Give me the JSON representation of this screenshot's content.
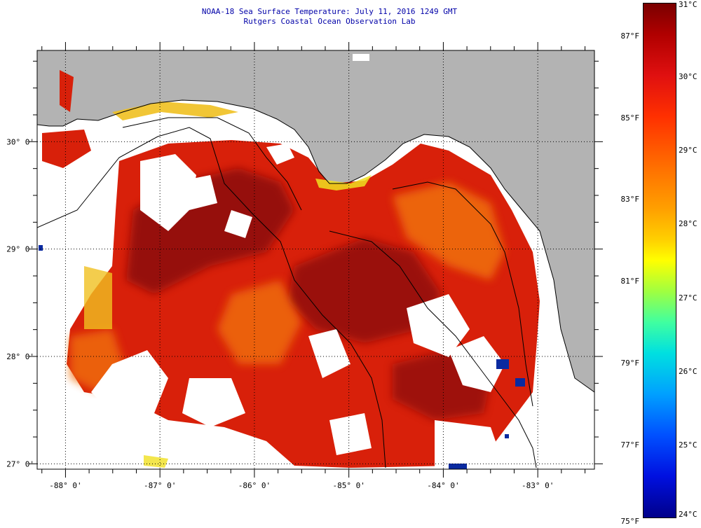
{
  "header": {
    "title": "NOAA-18 Sea Surface Temperature:  July 11, 2016 1249 GMT",
    "subtitle": "Rutgers Coastal Ocean Observation Lab"
  },
  "map": {
    "lon_range": [
      -88.3,
      -82.4
    ],
    "lat_range": [
      26.95,
      30.85
    ],
    "lon_ticks": [
      {
        "value": -88,
        "label": "-88° 0'"
      },
      {
        "value": -87,
        "label": "-87° 0'"
      },
      {
        "value": -86,
        "label": "-86° 0'"
      },
      {
        "value": -85,
        "label": "-85° 0'"
      },
      {
        "value": -84,
        "label": "-84° 0'"
      },
      {
        "value": -83,
        "label": "-83° 0'"
      }
    ],
    "lat_ticks": [
      {
        "value": 30,
        "label": "30° 0'"
      },
      {
        "value": 29,
        "label": "29° 0'"
      },
      {
        "value": 28,
        "label": "28° 0'"
      },
      {
        "value": 27,
        "label": "27° 0'"
      }
    ],
    "colors": {
      "land": "#b3b3b3",
      "no_data": "#ffffff",
      "warm_dark": "#8b0a0a",
      "warm": "#d8200a",
      "orange": "#f07010",
      "yellow": "#f0e020",
      "cold": "#0a2aa0"
    }
  },
  "colorbar": {
    "celsius_labels": [
      "31°C",
      "30°C",
      "29°C",
      "28°C",
      "27°C",
      "26°C",
      "25°C",
      "24°C"
    ],
    "fahrenheit_labels": [
      "87°F",
      "85°F",
      "83°F",
      "81°F",
      "79°F",
      "77°F",
      "75°F"
    ],
    "range_c": [
      24,
      31
    ]
  }
}
